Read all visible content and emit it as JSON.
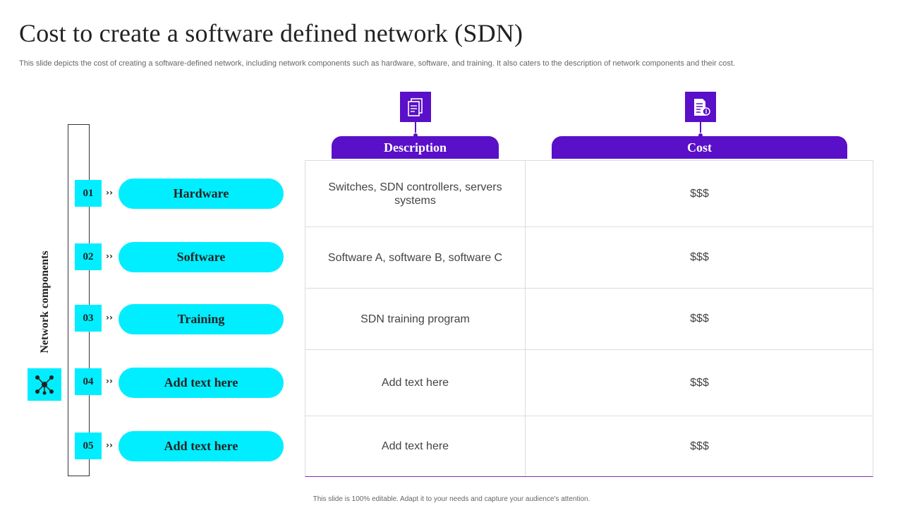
{
  "title": "Cost to create a software defined network (SDN)",
  "subtitle": "This slide depicts the cost of creating a software-defined network, including network components such as hardware, software, and training. It also caters to the description of network components and their cost.",
  "side_label": "Network components",
  "chevron": "››",
  "headers": {
    "description": "Description",
    "cost": "Cost"
  },
  "rows": [
    {
      "num": "01",
      "component": "Hardware",
      "description": "Switches, SDN controllers, servers systems",
      "cost": "$$$"
    },
    {
      "num": "02",
      "component": "Software",
      "description": "Software A, software B, software C",
      "cost": "$$$"
    },
    {
      "num": "03",
      "component": "Training",
      "description": "SDN training program",
      "cost": "$$$"
    },
    {
      "num": "04",
      "component": "Add text here",
      "description": "Add text here",
      "cost": "$$$"
    },
    {
      "num": "05",
      "component": "Add text here",
      "description": "Add text here",
      "cost": "$$$"
    }
  ],
  "icons": {
    "side": "network-icon",
    "description": "document-icon",
    "cost": "invoice-icon"
  },
  "colors": {
    "accent": "#5a0fc8",
    "highlight": "#00eeff"
  },
  "footer": "This slide is 100% editable. Adapt it to your needs and capture your audience's attention."
}
